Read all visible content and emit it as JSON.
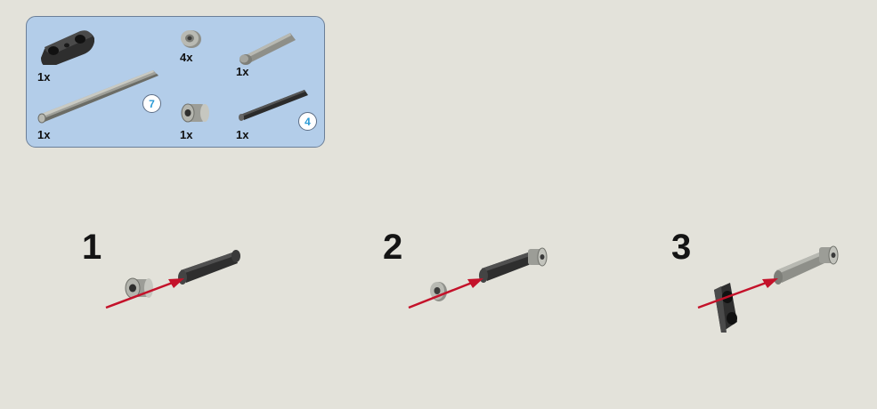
{
  "parts_list": {
    "items": [
      {
        "name": "beam-connector",
        "quantity": "1x"
      },
      {
        "name": "bush",
        "quantity": "4x"
      },
      {
        "name": "short-axle",
        "quantity": "1x"
      },
      {
        "name": "long-axle",
        "quantity": "1x",
        "length_ref": "7"
      },
      {
        "name": "half-bush-small",
        "quantity": "1x"
      },
      {
        "name": "axle-black",
        "quantity": "1x",
        "length_ref": "4"
      }
    ]
  },
  "steps": [
    {
      "number": "1"
    },
    {
      "number": "2"
    },
    {
      "number": "3"
    }
  ],
  "colors": {
    "panel_bg": "#b3cde9",
    "panel_border": "#6b7f98",
    "ref_badge_text": "#2a9ad6",
    "arrow": "#c4122a",
    "part_dark": "#3a3a3a",
    "part_grey": "#a9aaa3"
  }
}
